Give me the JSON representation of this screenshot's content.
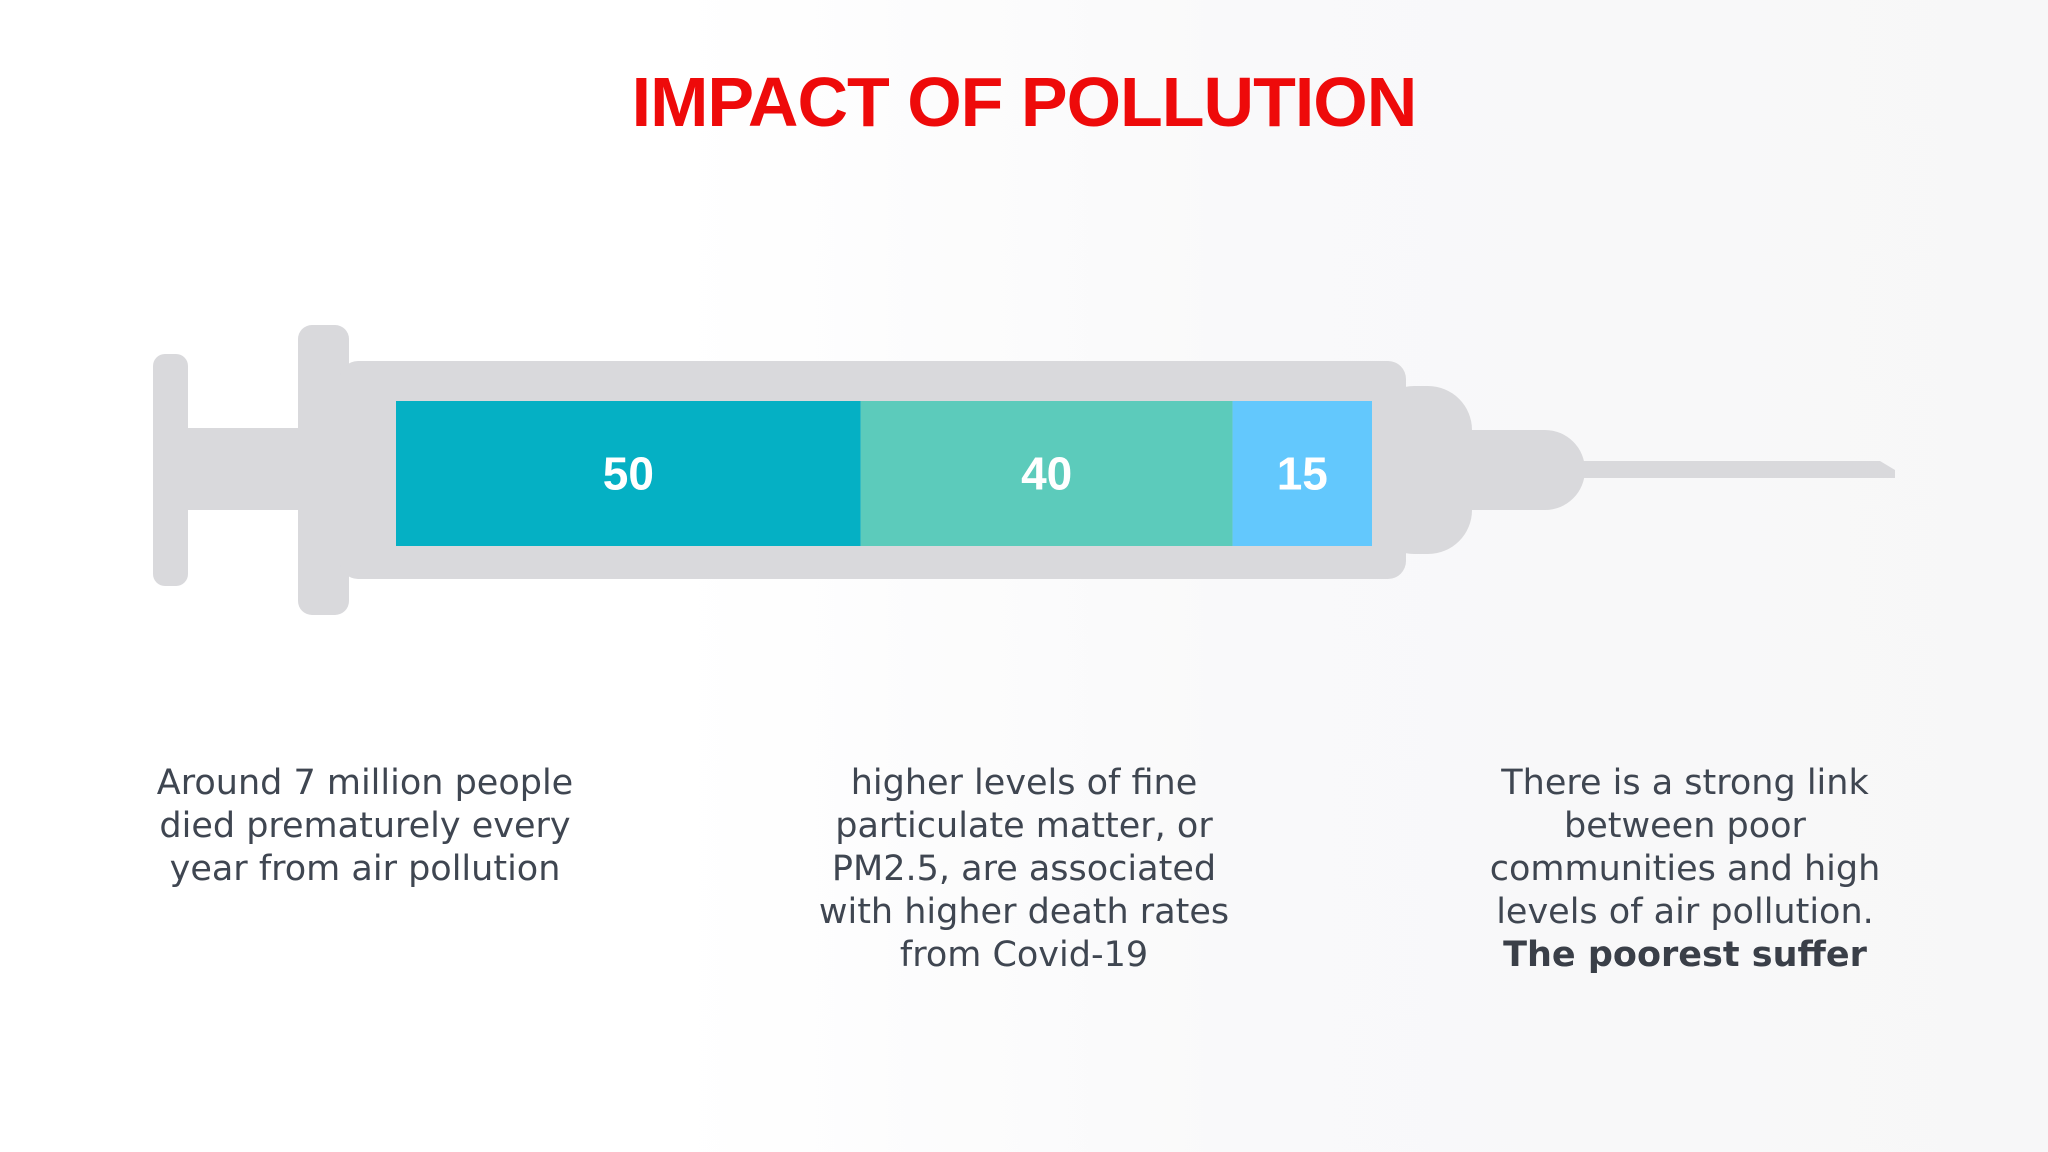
{
  "title": "IMPACT OF POLLUTION",
  "colors": {
    "title": "#ee0a0a",
    "syringe": "#d9d9dc",
    "caption_text": "#3f4651"
  },
  "chart_data": {
    "type": "bar",
    "orientation": "horizontal-stacked",
    "title": "IMPACT OF POLLUTION",
    "segments": [
      {
        "label": "50",
        "value": 50,
        "color": "#05b0c4"
      },
      {
        "label": "40",
        "value": 40,
        "color": "#5ccbbb"
      },
      {
        "label": "15",
        "value": 15,
        "color": "#63c8fd"
      }
    ]
  },
  "captions": [
    {
      "text": "Around 7 million people died prematurely every year from air pollution"
    },
    {
      "text": "higher levels of fine particulate matter, or PM2.5, are associated with higher death rates from Covid-19"
    },
    {
      "text": "There is a strong link between poor communities and high levels of air pollution.",
      "bold": "The poorest suffer"
    }
  ]
}
